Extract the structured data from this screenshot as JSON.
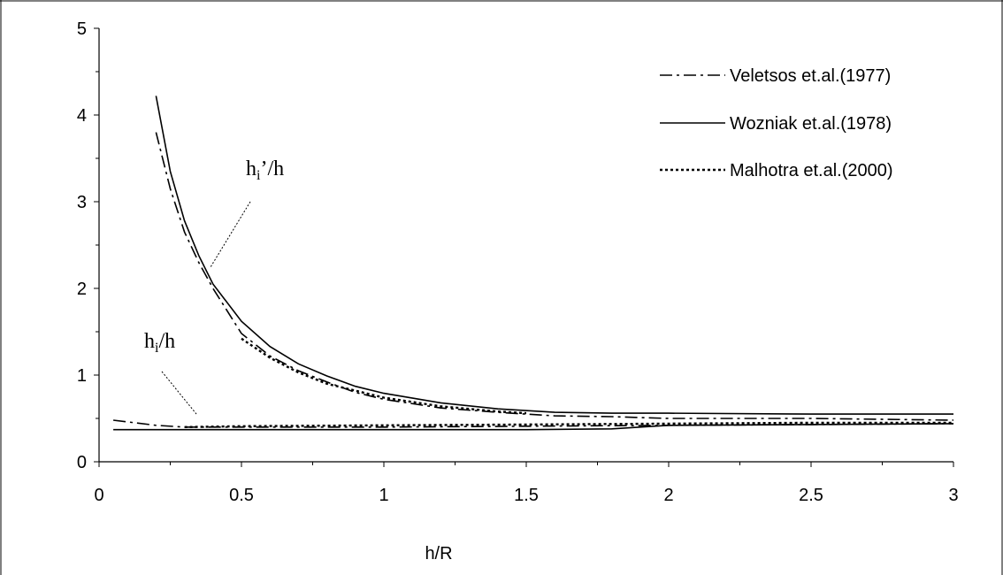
{
  "chart_data": {
    "type": "line",
    "xlabel": "h/R",
    "ylabel": "",
    "xlim": [
      0,
      3
    ],
    "ylim": [
      0,
      5
    ],
    "xticks": [
      "0",
      "0.5",
      "1",
      "1.5",
      "2",
      "2.5",
      "3"
    ],
    "yticks": [
      "0",
      "1",
      "2",
      "3",
      "4",
      "5"
    ],
    "grid": false,
    "legend_position": "top-right",
    "legend": [
      {
        "label": "Veletsos et.al.(1977)",
        "style": "dashdot"
      },
      {
        "label": "Wozniak et.al.(1978)",
        "style": "solid"
      },
      {
        "label": "Malhotra et.al.(2000)",
        "style": "dotted"
      }
    ],
    "annotations": [
      {
        "base": "h",
        "sub": "i",
        "suffix": "’/h",
        "target_x": 0.4,
        "target_y": 2.1
      },
      {
        "base": "h",
        "sub": "i",
        "suffix": "/h",
        "target_x": 0.35,
        "target_y": 0.5
      }
    ],
    "series": [
      {
        "name": "Veletsos et.al.(1977)",
        "group": "hi'/h",
        "style": "dashdot",
        "x": [
          0.2,
          0.25,
          0.3,
          0.35,
          0.4,
          0.5,
          0.6,
          0.7,
          0.8,
          0.9,
          1.0,
          1.2,
          1.4,
          1.6,
          1.8,
          2.0,
          2.5,
          3.0
        ],
        "y": [
          3.8,
          3.15,
          2.65,
          2.3,
          2.0,
          1.48,
          1.22,
          1.05,
          0.92,
          0.8,
          0.72,
          0.62,
          0.57,
          0.53,
          0.52,
          0.5,
          0.5,
          0.48
        ]
      },
      {
        "name": "Wozniak et.al.(1978)",
        "group": "hi'/h",
        "style": "solid",
        "x": [
          0.2,
          0.25,
          0.3,
          0.35,
          0.4,
          0.5,
          0.6,
          0.7,
          0.8,
          0.9,
          1.0,
          1.2,
          1.4,
          1.6,
          1.8,
          2.0,
          2.5,
          3.0
        ],
        "y": [
          4.22,
          3.35,
          2.78,
          2.38,
          2.05,
          1.62,
          1.33,
          1.13,
          0.99,
          0.87,
          0.79,
          0.68,
          0.61,
          0.57,
          0.56,
          0.56,
          0.55,
          0.55
        ]
      },
      {
        "name": "Malhotra et.al.(2000)",
        "group": "hi'/h",
        "style": "dotted",
        "x": [
          0.5,
          0.6,
          0.7,
          0.8,
          0.9,
          1.0,
          1.2,
          1.4,
          1.5
        ],
        "y": [
          1.42,
          1.2,
          1.03,
          0.9,
          0.82,
          0.74,
          0.64,
          0.58,
          0.56
        ]
      },
      {
        "name": "Veletsos et.al.(1977)",
        "group": "hi/h",
        "style": "dashdot",
        "x": [
          0.05,
          0.2,
          0.3,
          0.5,
          1.0,
          1.5,
          2.0,
          2.5,
          3.0
        ],
        "y": [
          0.48,
          0.42,
          0.4,
          0.4,
          0.4,
          0.41,
          0.42,
          0.43,
          0.44
        ]
      },
      {
        "name": "Wozniak et.al.(1978)",
        "group": "hi/h",
        "style": "solid",
        "x": [
          0.05,
          0.5,
          1.0,
          1.5,
          1.8,
          2.0,
          2.5,
          3.0
        ],
        "y": [
          0.37,
          0.37,
          0.37,
          0.37,
          0.38,
          0.42,
          0.43,
          0.44
        ]
      },
      {
        "name": "Malhotra et.al.(2000)",
        "group": "hi/h",
        "style": "dotted",
        "x": [
          0.3,
          0.5,
          1.0,
          1.5,
          2.0,
          2.5,
          3.0
        ],
        "y": [
          0.4,
          0.41,
          0.42,
          0.43,
          0.44,
          0.45,
          0.45
        ]
      }
    ]
  }
}
